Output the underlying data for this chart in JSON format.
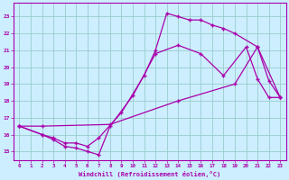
{
  "xlabel": "Windchill (Refroidissement éolien,°C)",
  "bg_color": "#cceeff",
  "line_color": "#aa00aa",
  "grid_color": "#99cccc",
  "xlim": [
    -0.5,
    23.5
  ],
  "ylim": [
    14.5,
    23.8
  ],
  "xticks": [
    0,
    1,
    2,
    3,
    4,
    5,
    6,
    7,
    8,
    9,
    10,
    11,
    12,
    13,
    14,
    15,
    16,
    17,
    18,
    19,
    20,
    21,
    22,
    23
  ],
  "yticks": [
    15,
    16,
    17,
    18,
    19,
    20,
    21,
    22,
    23
  ],
  "line1_x": [
    0,
    2,
    3,
    4,
    5,
    6,
    7,
    8,
    10,
    12,
    14,
    16,
    18,
    20,
    21,
    22,
    23
  ],
  "line1_y": [
    16.5,
    16.0,
    15.7,
    15.3,
    15.2,
    15.0,
    14.8,
    16.5,
    18.3,
    20.8,
    21.3,
    20.8,
    19.5,
    21.2,
    19.3,
    18.2,
    18.2
  ],
  "line2_x": [
    0,
    2,
    3,
    4,
    5,
    6,
    7,
    9,
    11,
    12,
    13,
    14,
    15,
    16,
    17,
    18,
    19,
    21,
    22,
    23
  ],
  "line2_y": [
    16.5,
    16.0,
    15.8,
    15.5,
    15.5,
    15.3,
    15.8,
    17.3,
    19.5,
    21.0,
    23.2,
    23.0,
    22.8,
    22.8,
    22.5,
    22.3,
    22.0,
    21.2,
    19.2,
    18.2
  ],
  "line3_x": [
    0,
    2,
    8,
    14,
    19,
    21,
    23
  ],
  "line3_y": [
    16.5,
    16.5,
    16.6,
    18.0,
    19.0,
    21.2,
    18.2
  ]
}
